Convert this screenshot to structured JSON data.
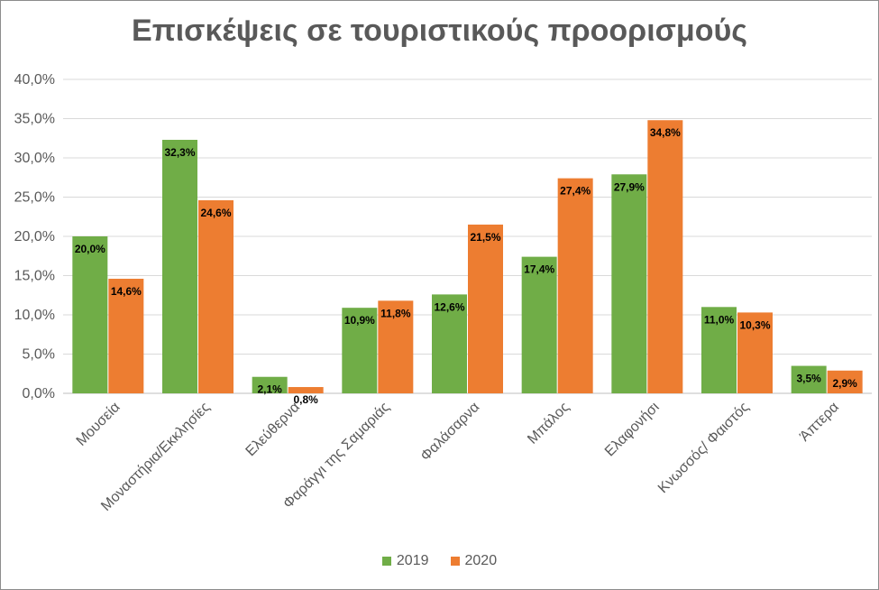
{
  "chart_data": {
    "type": "bar",
    "title": "Επισκέψεις σε τουριστικούς προορισμούς",
    "xlabel": "",
    "ylabel": "",
    "ylim": [
      0,
      40
    ],
    "y_ticks": [
      "0,0%",
      "5,0%",
      "10,0%",
      "15,0%",
      "20,0%",
      "25,0%",
      "30,0%",
      "35,0%",
      "40,0%"
    ],
    "grid": true,
    "legend_position": "bottom",
    "categories": [
      "Μουσεία",
      "Μοναστήρια/Εκκλησίες",
      "Ελεύθερνα",
      "Φαράγγι της Σαμαριάς",
      "Φαλάσαρνα",
      "Μπάλος",
      "Ελαφονήσι",
      "Κνωσσός/ Φαιστός",
      "Άπτερα"
    ],
    "series": [
      {
        "name": "2019",
        "color": "#70ad47",
        "values": [
          20.0,
          32.3,
          2.1,
          10.9,
          12.6,
          17.4,
          27.9,
          11.0,
          3.5
        ],
        "labels": [
          "20,0%",
          "32,3%",
          "2,1%",
          "10,9%",
          "12,6%",
          "17,4%",
          "27,9%",
          "11,0%",
          "3,5%"
        ]
      },
      {
        "name": "2020",
        "color": "#ed7d31",
        "values": [
          14.6,
          24.6,
          0.8,
          11.8,
          21.5,
          27.4,
          34.8,
          10.3,
          2.9
        ],
        "labels": [
          "14,6%",
          "24,6%",
          "0,8%",
          "11,8%",
          "21,5%",
          "27,4%",
          "34,8%",
          "10,3%",
          "2,9%"
        ]
      }
    ]
  }
}
